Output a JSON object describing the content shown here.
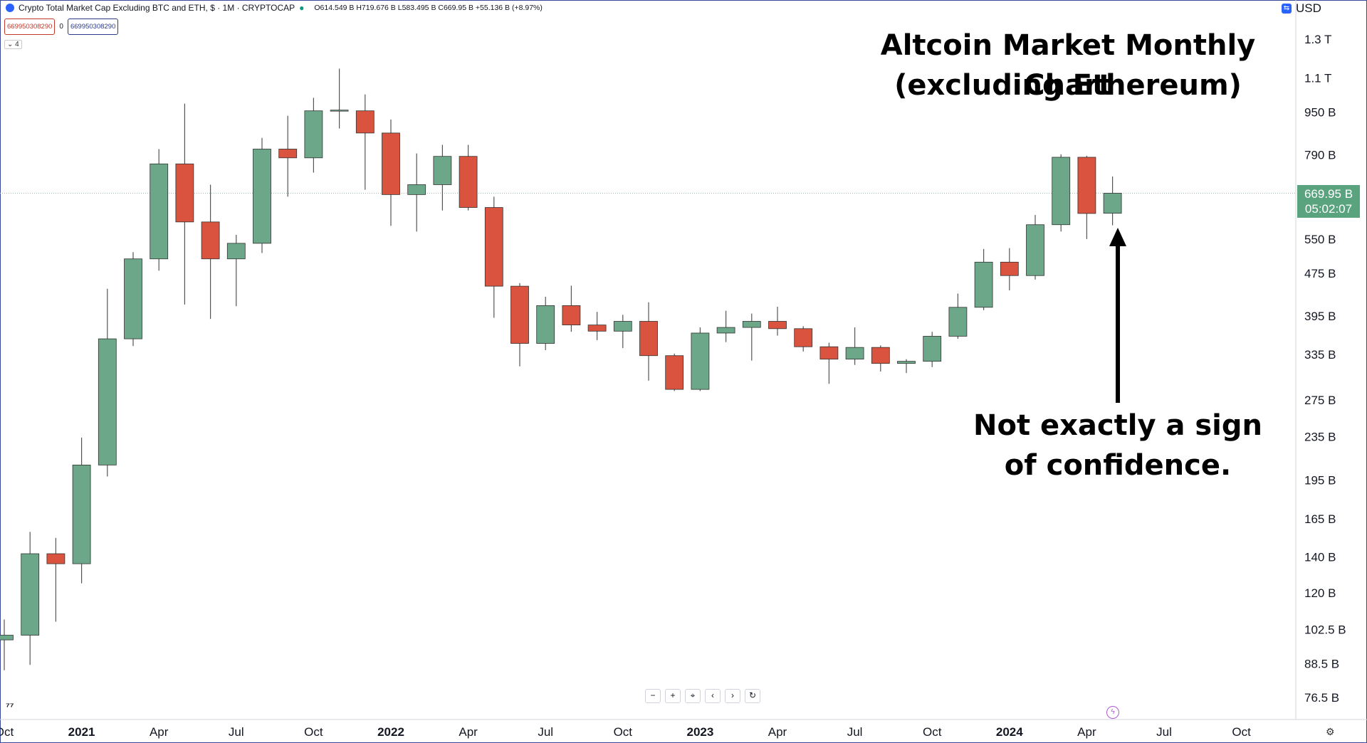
{
  "header": {
    "symbol_title": "Crypto Total Market Cap Excluding BTC and ETH, $ · 1M · CRYPTOCAP",
    "ohlc": "O614.549 B H719.676 B L583.495 B C669.95 B +55.136 B (+8.97%)",
    "sell_box": "669950308290",
    "spread": "0",
    "buy_box": "669950308290",
    "indicators_count": "4"
  },
  "currency": {
    "label": "USD",
    "icon": "currency-icon"
  },
  "annotations": {
    "title_line1": "Altcoin Market Monthly Chart",
    "title_line2": "(excluding Ethereum)",
    "note_line1": "Not exactly a sign",
    "note_line2": "of confidence."
  },
  "last_price": {
    "value": "669.95 B",
    "countdown": "05:02:07"
  },
  "nav": {
    "zoom_out": "−",
    "zoom_in": "+",
    "reset": "⌖",
    "left": "‹",
    "right": "›",
    "refresh": "↻"
  },
  "colors": {
    "up": "#6ba788",
    "down": "#d9533e",
    "wick": "#555555",
    "grid_price_line": "#9fb8a8",
    "axis_text": "#131722"
  },
  "chart_data": {
    "type": "candlestick",
    "scale": "log",
    "y_ticks": [
      "1.3 T",
      "1.1 T",
      "950 B",
      "790 B",
      "550 B",
      "475 B",
      "395 B",
      "335 B",
      "275 B",
      "235 B",
      "195 B",
      "165 B",
      "140 B",
      "120 B",
      "102.5 B",
      "88.5 B",
      "76.5 B"
    ],
    "y_tick_values": [
      1300,
      1100,
      950,
      790,
      550,
      475,
      395,
      335,
      275,
      235,
      195,
      165,
      140,
      120,
      102.5,
      88.5,
      76.5
    ],
    "x_ticks": [
      "Oct",
      "2021",
      "Apr",
      "Jul",
      "Oct",
      "2022",
      "Apr",
      "Jul",
      "Oct",
      "2023",
      "Apr",
      "Jul",
      "Oct",
      "2024",
      "Apr",
      "Jul",
      "Oct"
    ],
    "x_ticks_bold": [
      false,
      true,
      false,
      false,
      false,
      true,
      false,
      false,
      false,
      true,
      false,
      false,
      false,
      true,
      false,
      false,
      false
    ],
    "units": "B (USD)",
    "candles": [
      {
        "date": "2020-10",
        "o": 98,
        "h": 107,
        "l": 86,
        "c": 100
      },
      {
        "date": "2020-11",
        "o": 100,
        "h": 156,
        "l": 88,
        "c": 142
      },
      {
        "date": "2020-12",
        "o": 142,
        "h": 152,
        "l": 106,
        "c": 136
      },
      {
        "date": "2021-01",
        "o": 136,
        "h": 234,
        "l": 125,
        "c": 208
      },
      {
        "date": "2021-02",
        "o": 208,
        "h": 444,
        "l": 198,
        "c": 358
      },
      {
        "date": "2021-03",
        "o": 358,
        "h": 520,
        "l": 347,
        "c": 505
      },
      {
        "date": "2021-04",
        "o": 505,
        "h": 810,
        "l": 480,
        "c": 760
      },
      {
        "date": "2021-05",
        "o": 760,
        "h": 985,
        "l": 415,
        "c": 592
      },
      {
        "date": "2021-06",
        "o": 592,
        "h": 695,
        "l": 390,
        "c": 505
      },
      {
        "date": "2021-07",
        "o": 505,
        "h": 560,
        "l": 412,
        "c": 540
      },
      {
        "date": "2021-08",
        "o": 540,
        "h": 850,
        "l": 518,
        "c": 810
      },
      {
        "date": "2021-09",
        "o": 810,
        "h": 935,
        "l": 660,
        "c": 780
      },
      {
        "date": "2021-10",
        "o": 780,
        "h": 1010,
        "l": 732,
        "c": 955
      },
      {
        "date": "2021-11",
        "o": 955,
        "h": 1145,
        "l": 885,
        "c": 958
      },
      {
        "date": "2021-12",
        "o": 955,
        "h": 1025,
        "l": 680,
        "c": 868
      },
      {
        "date": "2022-01",
        "o": 868,
        "h": 920,
        "l": 582,
        "c": 666
      },
      {
        "date": "2022-02",
        "o": 666,
        "h": 795,
        "l": 568,
        "c": 695
      },
      {
        "date": "2022-03",
        "o": 695,
        "h": 825,
        "l": 622,
        "c": 785
      },
      {
        "date": "2022-04",
        "o": 785,
        "h": 825,
        "l": 622,
        "c": 630
      },
      {
        "date": "2022-05",
        "o": 630,
        "h": 660,
        "l": 392,
        "c": 449
      },
      {
        "date": "2022-06",
        "o": 449,
        "h": 455,
        "l": 318,
        "c": 351
      },
      {
        "date": "2022-07",
        "o": 351,
        "h": 429,
        "l": 341,
        "c": 413
      },
      {
        "date": "2022-08",
        "o": 413,
        "h": 450,
        "l": 369,
        "c": 380
      },
      {
        "date": "2022-09",
        "o": 380,
        "h": 402,
        "l": 356,
        "c": 370
      },
      {
        "date": "2022-10",
        "o": 370,
        "h": 397,
        "l": 344,
        "c": 386
      },
      {
        "date": "2022-11",
        "o": 386,
        "h": 419,
        "l": 299,
        "c": 333
      },
      {
        "date": "2022-12",
        "o": 333,
        "h": 336,
        "l": 286,
        "c": 288
      },
      {
        "date": "2023-01",
        "o": 288,
        "h": 376,
        "l": 286,
        "c": 367
      },
      {
        "date": "2023-02",
        "o": 367,
        "h": 404,
        "l": 353,
        "c": 376
      },
      {
        "date": "2023-03",
        "o": 376,
        "h": 399,
        "l": 326,
        "c": 386
      },
      {
        "date": "2023-04",
        "o": 386,
        "h": 411,
        "l": 363,
        "c": 374
      },
      {
        "date": "2023-05",
        "o": 374,
        "h": 378,
        "l": 339,
        "c": 346
      },
      {
        "date": "2023-06",
        "o": 346,
        "h": 352,
        "l": 295,
        "c": 328
      },
      {
        "date": "2023-07",
        "o": 328,
        "h": 376,
        "l": 320,
        "c": 345
      },
      {
        "date": "2023-08",
        "o": 345,
        "h": 348,
        "l": 311,
        "c": 322
      },
      {
        "date": "2023-09",
        "o": 322,
        "h": 328,
        "l": 309,
        "c": 325
      },
      {
        "date": "2023-10",
        "o": 325,
        "h": 369,
        "l": 317,
        "c": 362
      },
      {
        "date": "2023-11",
        "o": 362,
        "h": 435,
        "l": 358,
        "c": 410
      },
      {
        "date": "2023-12",
        "o": 410,
        "h": 527,
        "l": 405,
        "c": 498
      },
      {
        "date": "2024-01",
        "o": 498,
        "h": 529,
        "l": 441,
        "c": 470
      },
      {
        "date": "2024-02",
        "o": 470,
        "h": 610,
        "l": 462,
        "c": 585
      },
      {
        "date": "2024-03",
        "o": 585,
        "h": 792,
        "l": 568,
        "c": 782
      },
      {
        "date": "2024-04",
        "o": 782,
        "h": 787,
        "l": 550,
        "c": 614
      },
      {
        "date": "2024-05",
        "o": 614.549,
        "h": 719.676,
        "l": 583.495,
        "c": 669.95
      }
    ]
  }
}
